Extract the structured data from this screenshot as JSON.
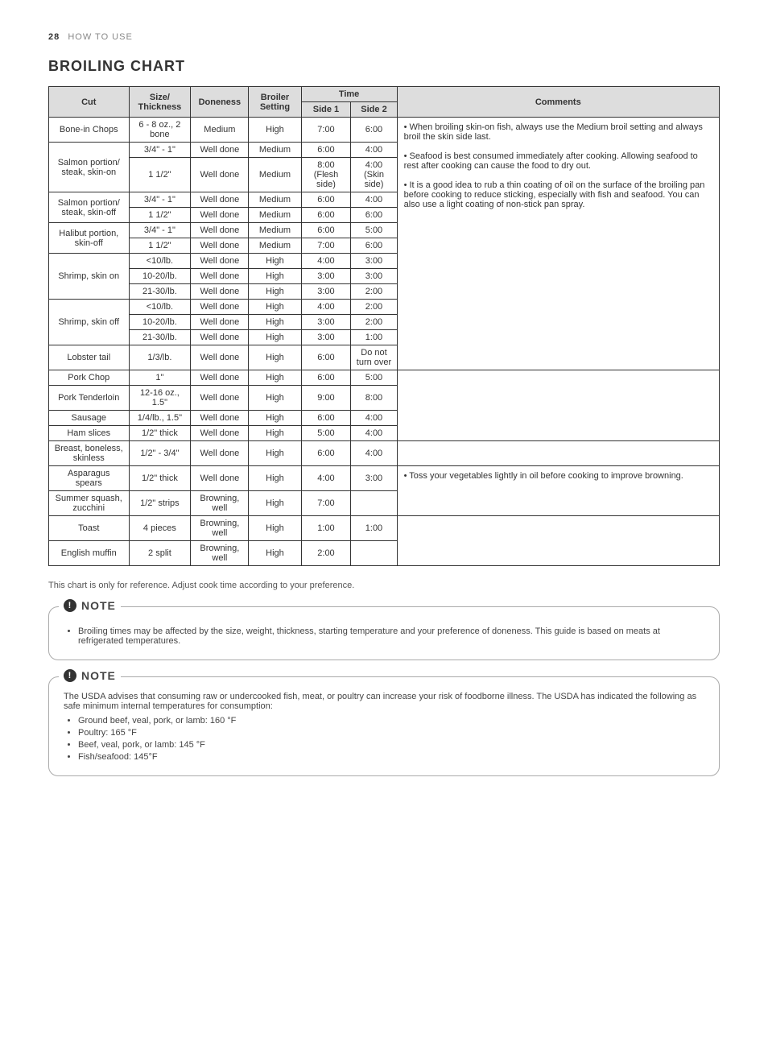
{
  "page": {
    "number": "28",
    "section": "HOW TO USE",
    "title": "BROILING CHART"
  },
  "table": {
    "headers": {
      "cut": "Cut",
      "size": "Size/\nThickness",
      "doneness": "Doneness",
      "broiler": "Broiler\nSetting",
      "time": "Time",
      "side1": "Side 1",
      "side2": "Side 2",
      "comments": "Comments"
    },
    "comments": {
      "seafood": "• When broiling skin-on fish, always use the Medium broil setting and always broil the skin side last.\n\n• Seafood is best consumed immediately after cooking. Allowing seafood to rest after cooking can cause the food to dry out.\n\n• It is a good idea to rub a thin coating of oil on the surface of the broiling pan before cooking to reduce sticking, especially with fish and seafood. You can also use a light coating of non-stick pan spray.",
      "veg": "• Toss your vegetables lightly in oil before cooking to improve browning."
    },
    "rows": [
      {
        "cut": "Bone-in Chops",
        "size": "6 - 8 oz., 2 bone",
        "doneness": "Medium",
        "broiler": "High",
        "s1": "7:00",
        "s2": "6:00",
        "comment_group": "seafood",
        "cut_rowspan": 1
      },
      {
        "cut": "Salmon portion/ steak, skin-on",
        "size": "3/4\" - 1\"",
        "doneness": "Well done",
        "broiler": "Medium",
        "s1": "6:00",
        "s2": "4:00",
        "cut_rowspan": 2
      },
      {
        "size": "1 1/2\"",
        "doneness": "Well done",
        "broiler": "Medium",
        "s1": "8:00 (Flesh side)",
        "s2": "4:00 (Skin side)"
      },
      {
        "cut": "Salmon portion/ steak, skin-off",
        "size": "3/4\" - 1\"",
        "doneness": "Well done",
        "broiler": "Medium",
        "s1": "6:00",
        "s2": "4:00",
        "cut_rowspan": 2
      },
      {
        "size": "1 1/2\"",
        "doneness": "Well done",
        "broiler": "Medium",
        "s1": "6:00",
        "s2": "6:00"
      },
      {
        "cut": "Halibut portion, skin-off",
        "size": "3/4\" - 1\"",
        "doneness": "Well done",
        "broiler": "Medium",
        "s1": "6:00",
        "s2": "5:00",
        "cut_rowspan": 2
      },
      {
        "size": "1 1/2\"",
        "doneness": "Well done",
        "broiler": "Medium",
        "s1": "7:00",
        "s2": "6:00"
      },
      {
        "cut": "Shrimp, skin on",
        "size": "<10/lb.",
        "doneness": "Well done",
        "broiler": "High",
        "s1": "4:00",
        "s2": "3:00",
        "cut_rowspan": 3
      },
      {
        "size": "10-20/lb.",
        "doneness": "Well done",
        "broiler": "High",
        "s1": "3:00",
        "s2": "3:00"
      },
      {
        "size": "21-30/lb.",
        "doneness": "Well done",
        "broiler": "High",
        "s1": "3:00",
        "s2": "2:00"
      },
      {
        "cut": "Shrimp, skin off",
        "size": "<10/lb.",
        "doneness": "Well done",
        "broiler": "High",
        "s1": "4:00",
        "s2": "2:00",
        "cut_rowspan": 3
      },
      {
        "size": "10-20/lb.",
        "doneness": "Well done",
        "broiler": "High",
        "s1": "3:00",
        "s2": "2:00"
      },
      {
        "size": "21-30/lb.",
        "doneness": "Well done",
        "broiler": "High",
        "s1": "3:00",
        "s2": "1:00"
      },
      {
        "cut": "Lobster tail",
        "size": "1/3/lb.",
        "doneness": "Well done",
        "broiler": "High",
        "s1": "6:00",
        "s2": "Do not turn over",
        "cut_rowspan": 1
      },
      {
        "cut": "Pork Chop",
        "size": "1\"",
        "doneness": "Well done",
        "broiler": "High",
        "s1": "6:00",
        "s2": "5:00",
        "comment_group": "blank_meat",
        "cut_rowspan": 1
      },
      {
        "cut": "Pork Tenderloin",
        "size": "12-16 oz., 1.5\"",
        "doneness": "Well done",
        "broiler": "High",
        "s1": "9:00",
        "s2": "8:00",
        "cut_rowspan": 1
      },
      {
        "cut": "Sausage",
        "size": "1/4/lb., 1.5\"",
        "doneness": "Well done",
        "broiler": "High",
        "s1": "6:00",
        "s2": "4:00",
        "cut_rowspan": 1
      },
      {
        "cut": "Ham slices",
        "size": "1/2\" thick",
        "doneness": "Well done",
        "broiler": "High",
        "s1": "5:00",
        "s2": "4:00",
        "cut_rowspan": 1
      },
      {
        "cut": "Breast, boneless, skinless",
        "size": "1/2\" - 3/4\"",
        "doneness": "Well done",
        "broiler": "High",
        "s1": "6:00",
        "s2": "4:00",
        "comment_group": "blank_poultry",
        "cut_rowspan": 1
      },
      {
        "cut": "Asparagus spears",
        "size": "1/2\" thick",
        "doneness": "Well done",
        "broiler": "High",
        "s1": "4:00",
        "s2": "3:00",
        "comment_group": "veg",
        "cut_rowspan": 1
      },
      {
        "cut": "Summer squash, zucchini",
        "size": "1/2\" strips",
        "doneness": "Browning, well",
        "broiler": "High",
        "s1": "7:00",
        "s2": "",
        "cut_rowspan": 1
      },
      {
        "cut": "Toast",
        "size": "4 pieces",
        "doneness": "Browning, well",
        "broiler": "High",
        "s1": "1:00",
        "s2": "1:00",
        "comment_group": "blank_bread",
        "cut_rowspan": 1
      },
      {
        "cut": "English muffin",
        "size": "2 split",
        "doneness": "Browning, well",
        "broiler": "High",
        "s1": "2:00",
        "s2": "",
        "cut_rowspan": 1
      }
    ],
    "comment_rowspans": {
      "seafood": 14,
      "blank_meat": 4,
      "blank_poultry": 1,
      "veg": 2,
      "blank_bread": 2
    }
  },
  "after_note": "This chart is only for reference. Adjust cook time according to your preference.",
  "note1": {
    "label": "NOTE",
    "bullets": [
      "Broiling times may be affected by the size, weight, thickness, starting temperature and your preference of doneness. This guide is based on meats at refrigerated temperatures."
    ]
  },
  "note2": {
    "label": "NOTE",
    "intro": "The USDA advises that consuming raw or undercooked fish, meat, or poultry can increase your risk of foodborne illness. The USDA has indicated the following as safe minimum internal temperatures for consumption:",
    "bullets": [
      "Ground beef, veal, pork, or lamb: 160 °F",
      "Poultry: 165 °F",
      "Beef, veal, pork, or lamb: 145 °F",
      "Fish/seafood: 145°F"
    ]
  }
}
